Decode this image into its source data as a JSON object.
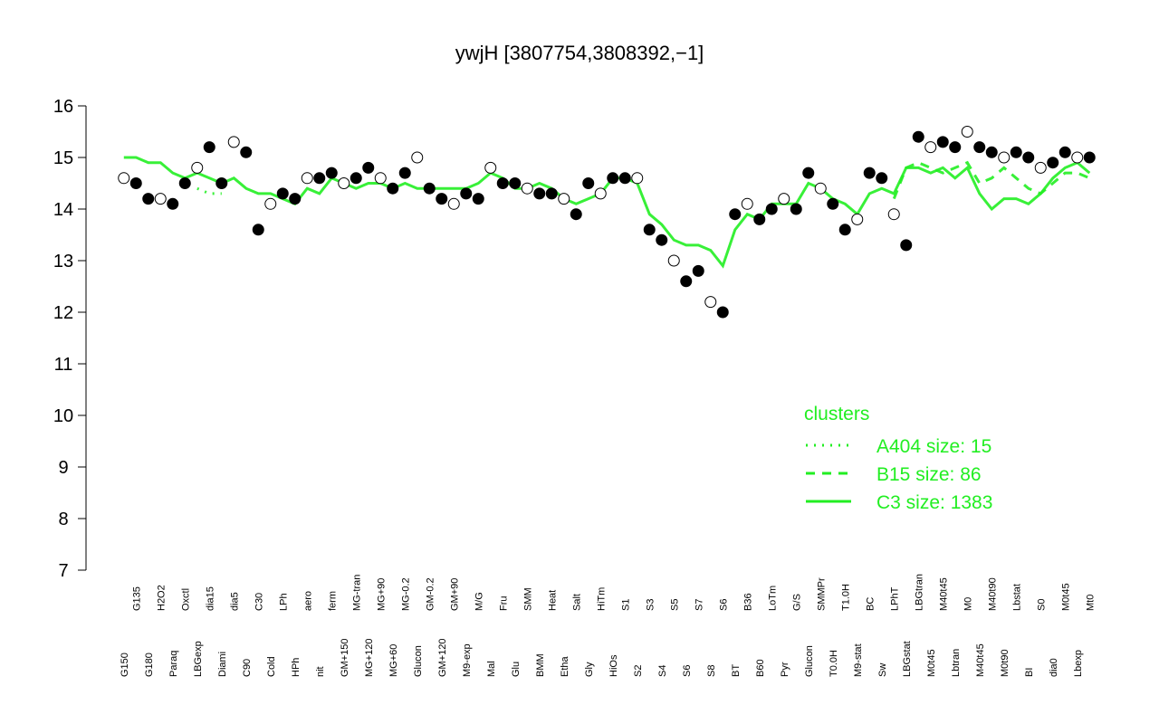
{
  "chart_data": {
    "type": "scatter-lines",
    "title": "ywjH [3807754,3808392,−1]",
    "categories": [
      "G150",
      "G135",
      "G180",
      "H2O2",
      "Paraq",
      "Oxctl",
      "LBGexp",
      "dia15",
      "Diami",
      "dia5",
      "C90",
      "C30",
      "Cold",
      "LPh",
      "HPh",
      "aero",
      "nit",
      "ferm",
      "GM+150",
      "MG-tran",
      "MG+120",
      "MG+90",
      "MG+60",
      "MG-0.2",
      "Glucon",
      "GM-0.2",
      "GM+120",
      "GM+90",
      "M9-exp",
      "M/G",
      "Mal",
      "Fru",
      "Glu",
      "SMM",
      "BMM",
      "Heat",
      "Etha",
      "Salt",
      "Gly",
      "HiTm",
      "HiOs",
      "S1",
      "S2",
      "S3",
      "S4",
      "S5",
      "S6",
      "S7",
      "S8",
      "S6",
      "BT",
      "B36",
      "B60",
      "LoTm",
      "Pyr",
      "G/S",
      "Glucon",
      "SMMPr",
      "T0.0H",
      "T1.0H",
      "M9-stat",
      "BC",
      "Sw",
      "LPhT",
      "LBGstat",
      "LBGtran",
      "M0t45",
      "M40t45",
      "Lbtran",
      "M0",
      "M40t45",
      "M40t90",
      "M0t90",
      "Lbstat",
      "BI",
      "S0",
      "dia0",
      "M0t45",
      "Lbexp",
      "Mt0"
    ],
    "values": [
      14.6,
      14.5,
      14.2,
      14.2,
      14.1,
      14.5,
      14.8,
      15.2,
      14.5,
      15.3,
      15.1,
      13.6,
      14.1,
      14.3,
      14.2,
      14.6,
      14.6,
      14.7,
      14.5,
      14.6,
      14.8,
      14.6,
      14.4,
      14.7,
      15.0,
      14.4,
      14.2,
      14.1,
      14.3,
      14.2,
      14.8,
      14.5,
      14.5,
      14.4,
      14.3,
      14.3,
      14.2,
      13.9,
      14.5,
      14.3,
      14.6,
      14.6,
      14.6,
      13.6,
      13.4,
      13.0,
      12.6,
      12.8,
      12.2,
      12.0,
      13.9,
      14.1,
      13.8,
      14.0,
      14.2,
      14.0,
      14.7,
      14.4,
      14.1,
      13.6,
      13.8,
      14.7,
      14.6,
      13.9,
      13.3,
      15.4,
      15.2,
      15.3,
      15.2,
      15.5,
      15.2,
      15.1,
      15.0,
      15.1,
      15.0,
      14.8,
      14.9,
      15.1,
      15.0,
      15.0
    ],
    "legend_title": "clusters",
    "legend": "right",
    "series": [
      {
        "name": "A404 size: 15",
        "color": "#22ee22",
        "linestyle": "dotted",
        "values": [
          null,
          null,
          null,
          null,
          null,
          null,
          14.4,
          14.3,
          14.3,
          null,
          null,
          null,
          null,
          null,
          null,
          null,
          null,
          null,
          null,
          null,
          null,
          null,
          null,
          null,
          null,
          null,
          null,
          null,
          null,
          null,
          null,
          null,
          null,
          null,
          null,
          null,
          null,
          null,
          null,
          null,
          null,
          null,
          null,
          null,
          null,
          null,
          null,
          null,
          null,
          null,
          null,
          null,
          null,
          null,
          null,
          null,
          null,
          null,
          null,
          null,
          null,
          null,
          null,
          null,
          null,
          null,
          null,
          null,
          null,
          null,
          null,
          null,
          null,
          null,
          null,
          null,
          null,
          null,
          null,
          null
        ]
      },
      {
        "name": "B15 size: 86",
        "color": "#22ee22",
        "linestyle": "dashed",
        "values": [
          null,
          null,
          null,
          null,
          null,
          null,
          null,
          null,
          null,
          null,
          null,
          null,
          null,
          null,
          null,
          null,
          null,
          null,
          null,
          null,
          null,
          null,
          null,
          null,
          null,
          null,
          null,
          null,
          null,
          null,
          null,
          null,
          null,
          null,
          null,
          null,
          null,
          null,
          null,
          null,
          null,
          null,
          null,
          null,
          null,
          null,
          null,
          null,
          null,
          null,
          null,
          null,
          null,
          null,
          null,
          null,
          null,
          null,
          null,
          null,
          null,
          null,
          null,
          14.2,
          14.8,
          14.9,
          14.8,
          14.7,
          14.8,
          14.9,
          14.5,
          14.6,
          14.8,
          14.6,
          14.4,
          14.3,
          14.5,
          14.7,
          14.7,
          14.6
        ]
      },
      {
        "name": "C3 size: 1383",
        "color": "#22ee22",
        "linestyle": "solid",
        "values": [
          15.0,
          15.0,
          14.9,
          14.9,
          14.7,
          14.6,
          14.7,
          14.6,
          14.5,
          14.6,
          14.4,
          14.3,
          14.3,
          14.2,
          14.1,
          14.4,
          14.3,
          14.6,
          14.5,
          14.4,
          14.5,
          14.5,
          14.4,
          14.5,
          14.4,
          14.4,
          14.4,
          14.4,
          14.4,
          14.5,
          14.7,
          14.6,
          14.4,
          14.4,
          14.5,
          14.4,
          14.2,
          14.1,
          14.2,
          14.3,
          14.6,
          14.6,
          14.5,
          13.9,
          13.7,
          13.4,
          13.3,
          13.3,
          13.2,
          12.9,
          13.6,
          13.9,
          13.8,
          14.1,
          14.1,
          14.1,
          14.5,
          14.4,
          14.2,
          14.1,
          13.9,
          14.3,
          14.4,
          14.3,
          14.8,
          14.8,
          14.7,
          14.8,
          14.6,
          14.8,
          14.3,
          14.0,
          14.2,
          14.2,
          14.1,
          14.3,
          14.6,
          14.8,
          14.9,
          14.7
        ]
      }
    ],
    "ylim": [
      7,
      16
    ],
    "yticks": [
      7,
      8,
      9,
      10,
      11,
      12,
      13,
      14,
      15,
      16
    ]
  }
}
